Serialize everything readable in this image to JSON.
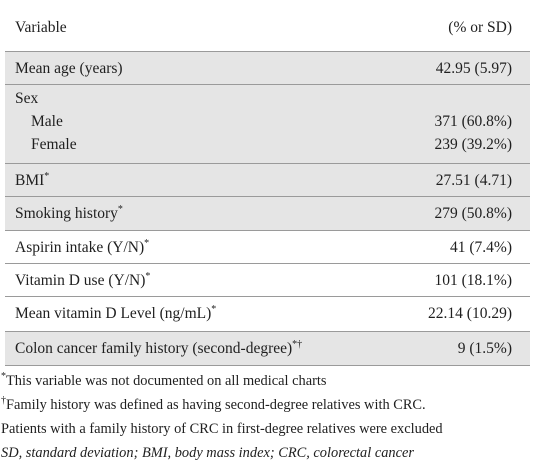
{
  "header": {
    "variable": "Variable",
    "stat": "(% or SD)"
  },
  "rows": {
    "mean_age": {
      "label": "Mean age (years)",
      "value": "42.95 (5.97)"
    },
    "sex": {
      "label": "Sex",
      "male_label": "Male",
      "male_value": "371 (60.8%)",
      "female_label": "Female",
      "female_value": "239 (39.2%)"
    },
    "bmi": {
      "label": "BMI",
      "mark": "*",
      "value": "27.51 (4.71)"
    },
    "smoking": {
      "label": "Smoking history",
      "mark": "*",
      "value": "279 (50.8%)"
    },
    "aspirin": {
      "label": "Aspirin intake (Y/N)",
      "mark": "*",
      "value": "41 (7.4%)"
    },
    "vitd_use": {
      "label": "Vitamin D use (Y/N)",
      "mark": "*",
      "value": "101 (18.1%)"
    },
    "vitd_level": {
      "label": "Mean vitamin D Level (ng/mL)",
      "mark": "*",
      "value": "22.14 (10.29)"
    },
    "family_history": {
      "label": "Colon cancer family history (second-degree)",
      "mark": "*†",
      "value": "9 (1.5%)"
    }
  },
  "footnotes": {
    "fn1_mark": "*",
    "fn1": "This variable was not documented on all medical charts",
    "fn2_mark": "†",
    "fn2_line1": "Family history was defined as having second-degree relatives with CRC.",
    "fn2_line2": "Patients with a family history of CRC in first-degree relatives were excluded",
    "abbrev": "SD, standard deviation; BMI, body mass index; CRC, colorectal cancer"
  },
  "colors": {
    "shade": "#e5e5e5",
    "rule": "#9a9a9a",
    "text": "#1f1f1f"
  }
}
